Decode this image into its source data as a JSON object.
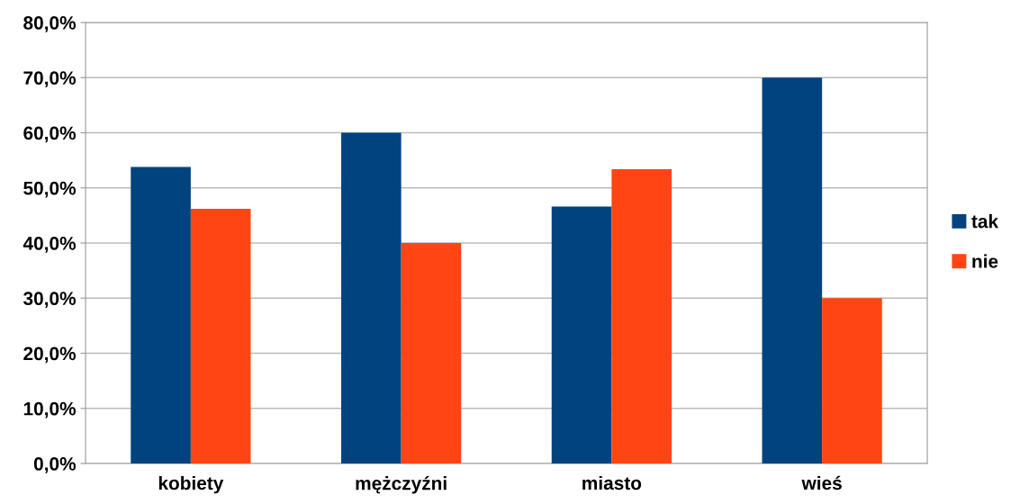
{
  "chart_data": {
    "type": "bar",
    "categories": [
      "kobiety",
      "mężczyźni",
      "miasto",
      "wieś"
    ],
    "series": [
      {
        "name": "tak",
        "color": "#00437f",
        "values": [
          53.8,
          60.0,
          46.6,
          70.0
        ]
      },
      {
        "name": "nie",
        "color": "#ff4513",
        "values": [
          46.2,
          40.0,
          53.4,
          30.0
        ]
      }
    ],
    "ylim": [
      0,
      80
    ],
    "yticks": [
      {
        "value": 0,
        "label": "0,0%"
      },
      {
        "value": 10,
        "label": "10,0%"
      },
      {
        "value": 20,
        "label": "20,0%"
      },
      {
        "value": 30,
        "label": "30,0%"
      },
      {
        "value": 40,
        "label": "40,0%"
      },
      {
        "value": 50,
        "label": "50,0%"
      },
      {
        "value": 60,
        "label": "60,0%"
      },
      {
        "value": 70,
        "label": "70,0%"
      },
      {
        "value": 80,
        "label": "80,0%"
      }
    ],
    "grid": "y",
    "legend": "right"
  }
}
